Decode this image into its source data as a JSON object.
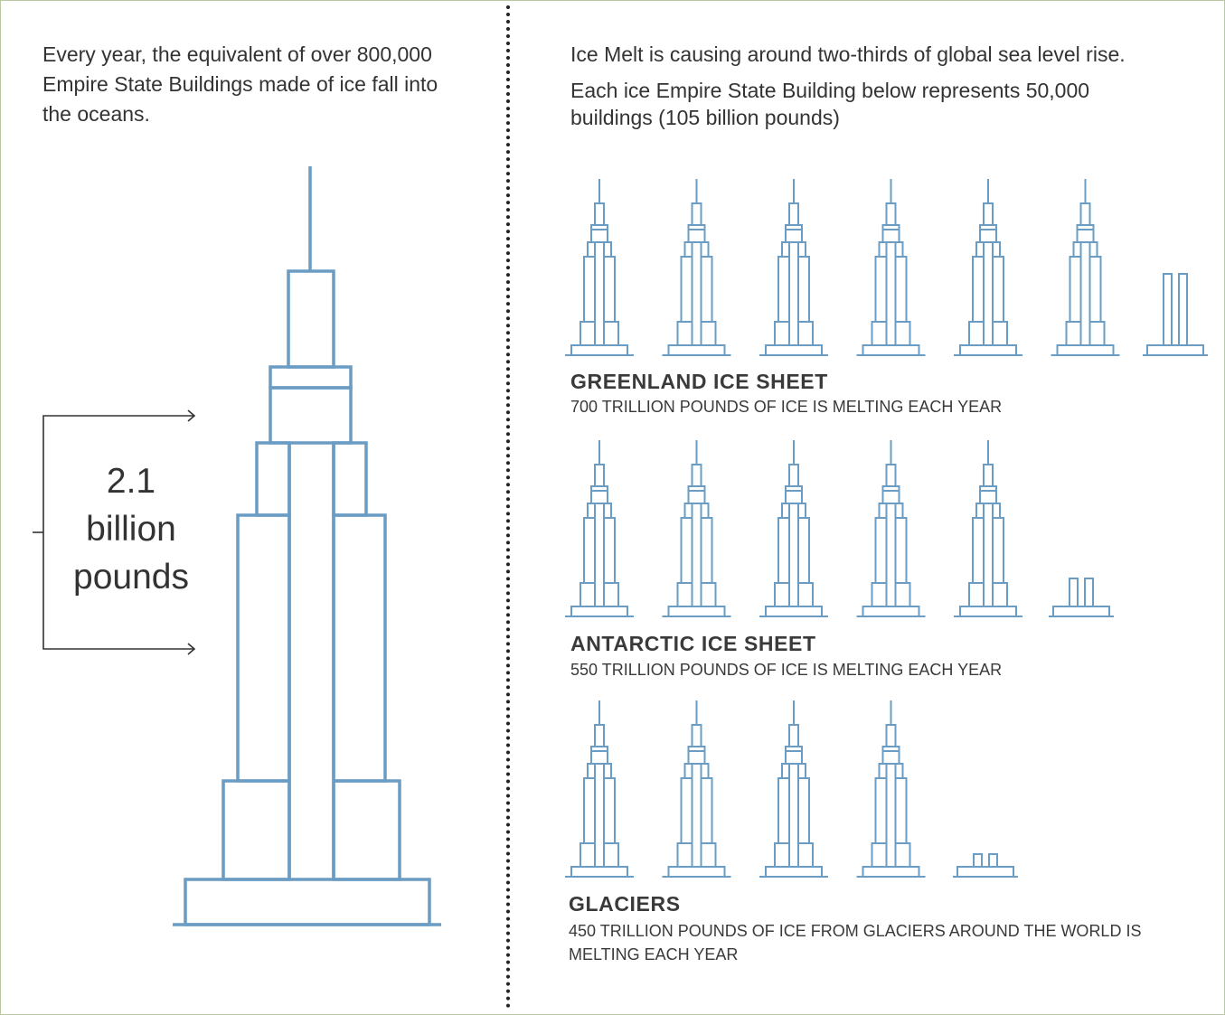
{
  "left": {
    "intro": "Every year, the equivalent of over 800,000 Empire State Buildings made of ice fall into the oceans.",
    "big_label_line1": "2.1",
    "big_label_line2": "billion",
    "big_label_line3": "pounds",
    "icon": "empire-state-building-outline"
  },
  "right": {
    "intro1": "Ice Melt is causing around two-thirds of global sea level rise.",
    "intro2": "Each ice Empire State Building below represents 50,000 buildings (105 billion pounds)"
  },
  "colors": {
    "building": "#6a9cc4",
    "text": "#3a3a3a",
    "divider": "#222222",
    "frame": "#b9c7a5"
  },
  "chart_data": {
    "type": "pictogram",
    "unit_label": "Each ice Empire State Building below represents 50,000 buildings (105 billion pounds)",
    "series": [
      {
        "name": "GREENLAND ICE SHEET",
        "subtitle": "700 TRILLION POUNDS OF ICE IS MELTING EACH YEAR",
        "value_trillion_lbs": 700,
        "icons": 6.67
      },
      {
        "name": "ANTARCTIC ICE SHEET",
        "subtitle": "550 TRILLION POUNDS OF ICE IS MELTING EACH YEAR",
        "value_trillion_lbs": 550,
        "icons": 5.24
      },
      {
        "name": "GLACIERS",
        "subtitle": "450 TRILLION POUNDS OF ICE FROM GLACIERS AROUND THE WORLD IS MELTING EACH YEAR",
        "value_trillion_lbs": 450,
        "icons": 4.29
      }
    ]
  }
}
